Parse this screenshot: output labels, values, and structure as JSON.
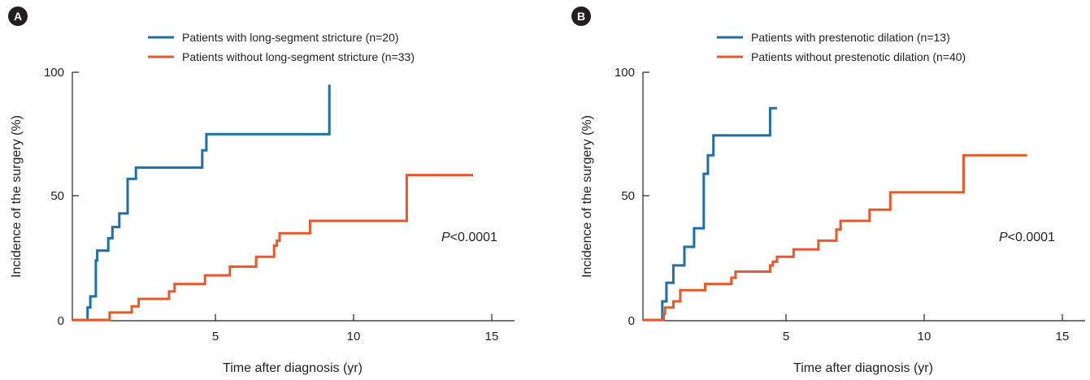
{
  "colors": {
    "series1": "#1f6fa7",
    "series2": "#e8582a",
    "axis": "#231f20"
  },
  "chart_data": [
    {
      "type": "line",
      "step": true,
      "panel_label": "A",
      "xlabel": "Time after diagnosis (yr)",
      "ylabel": "Incidence of the surgery (%)",
      "xlim": [
        0,
        16
      ],
      "ylim": [
        0,
        100
      ],
      "x_ticks": [
        "5",
        "10",
        "15"
      ],
      "y_ticks": [
        "0",
        "50",
        "100"
      ],
      "grid": false,
      "legend_position": "top",
      "annotation": {
        "italic": "P",
        "text": "<0.0001"
      },
      "series": [
        {
          "name": "Patients with long-segment stricture (n=20)",
          "color": "#1f6fa7",
          "x": [
            0,
            0.55,
            0.65,
            0.85,
            0.9,
            1.3,
            1.45,
            1.7,
            2.0,
            2.3,
            4.7,
            4.85,
            5.0,
            9.3
          ],
          "y": [
            0,
            5,
            9.5,
            24,
            28,
            33,
            37.5,
            43,
            57,
            61.5,
            68.5,
            75,
            75,
            95
          ]
        },
        {
          "name": "Patients without long-segment stricture (n=33)",
          "color": "#e8582a",
          "x": [
            0,
            1.35,
            2.15,
            2.4,
            3.5,
            3.7,
            4.8,
            5.7,
            6.65,
            7.3,
            7.4,
            7.5,
            8.6,
            12.1,
            14.5
          ],
          "y": [
            0,
            3,
            5.5,
            8.5,
            11.5,
            14.5,
            18,
            21.5,
            25.5,
            30,
            32,
            35,
            40,
            58.5,
            58.5
          ]
        }
      ]
    },
    {
      "type": "line",
      "step": true,
      "panel_label": "B",
      "xlabel": "Time after diagnosis (yr)",
      "ylabel": "Incidence of the surgery (%)",
      "xlim": [
        0,
        16
      ],
      "ylim": [
        0,
        100
      ],
      "x_ticks": [
        "5",
        "10",
        "15"
      ],
      "y_ticks": [
        "0",
        "50",
        "100"
      ],
      "grid": false,
      "legend_position": "top",
      "annotation": {
        "italic": "P",
        "text": "<0.0001"
      },
      "series": [
        {
          "name": "Patients with prestenotic dilation (n=13)",
          "color": "#1f6fa7",
          "x": [
            0,
            0.7,
            0.85,
            1.1,
            1.5,
            1.85,
            2.2,
            2.35,
            2.55,
            4.6,
            4.85
          ],
          "y": [
            0,
            7.5,
            15,
            22,
            29.5,
            37,
            59,
            66.5,
            74.5,
            85.5,
            85.5
          ]
        },
        {
          "name": "Patients without prestenotic dilation (n=40)",
          "color": "#e8582a",
          "x": [
            0,
            0.75,
            0.8,
            1.1,
            1.35,
            2.25,
            3.2,
            3.35,
            4.6,
            4.7,
            4.85,
            5.45,
            6.35,
            7.0,
            7.15,
            8.2,
            8.95,
            11.6,
            13.9
          ],
          "y": [
            0,
            2.5,
            5,
            7.5,
            12,
            14.5,
            17,
            19.5,
            22,
            23.5,
            25.5,
            28.5,
            32,
            36.5,
            40,
            44.5,
            51.5,
            66.5,
            66.5
          ]
        }
      ]
    }
  ]
}
